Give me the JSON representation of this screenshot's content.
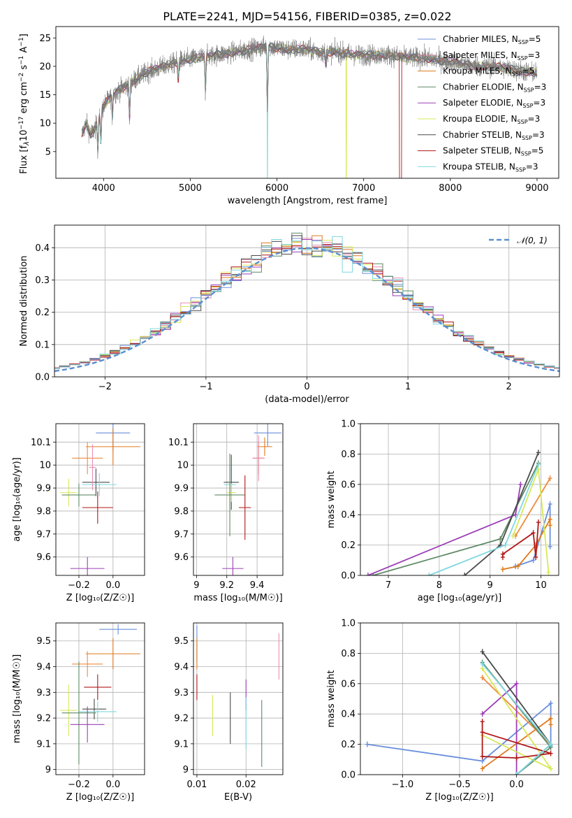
{
  "title": "PLATE=2241, MJD=54156, FIBERID=0385, z=0.022",
  "colors": {
    "Chabrier MILES": "#6a8fdc",
    "Salpeter MILES": "#f08a3c",
    "Kroupa MILES": "#e07a1c",
    "Chabrier ELODIE": "#5f8a66",
    "Salpeter ELODIE": "#9b3fb5",
    "Kroupa ELODIE": "#d7e85a",
    "Chabrier STELIB": "#4a4a4a",
    "Salpeter STELIB": "#b01717",
    "Kroupa STELIB": "#7fd8e0",
    "pink": "#e88fb4",
    "normal_curve": "#5b8fd0"
  },
  "chart_data": [
    {
      "id": "spectrum",
      "type": "line",
      "title": "PLATE=2241, MJD=54156, FIBERID=0385, z=0.022",
      "xlabel": "wavelength [Angstrom, rest frame]",
      "ylabel_parts": [
        "Flux [f",
        "λ",
        "10",
        "−17",
        " erg cm",
        "−2",
        " s",
        "−1",
        " A",
        "−1",
        "]"
      ],
      "xlim": [
        3450,
        9250
      ],
      "ylim": [
        0.3,
        27
      ],
      "xticks": [
        4000,
        5000,
        6000,
        7000,
        8000,
        9000
      ],
      "yticks": [
        5,
        10,
        15,
        20,
        25
      ],
      "legend_position": "top-right",
      "legend": [
        {
          "label": "Chabrier MILES, N",
          "sub": "SSP",
          "suffix": "=5"
        },
        {
          "label": "Salpeter MILES, N",
          "sub": "SSP",
          "suffix": "=3"
        },
        {
          "label": "Kroupa MILES, N",
          "sub": "SSP",
          "suffix": "=5"
        },
        {
          "label": "Chabrier ELODIE, N",
          "sub": "SSP",
          "suffix": "=3"
        },
        {
          "label": "Salpeter ELODIE, N",
          "sub": "SSP",
          "suffix": "=3"
        },
        {
          "label": "Kroupa ELODIE, N",
          "sub": "SSP",
          "suffix": "=3"
        },
        {
          "label": "Chabrier STELIB, N",
          "sub": "SSP",
          "suffix": "=3"
        },
        {
          "label": "Salpeter STELIB, N",
          "sub": "SSP",
          "suffix": "=5"
        },
        {
          "label": "Kroupa STELIB, N",
          "sub": "SSP",
          "suffix": "=3"
        }
      ],
      "continuum": [
        [
          3750,
          8
        ],
        [
          3800,
          10
        ],
        [
          3850,
          8
        ],
        [
          3900,
          9
        ],
        [
          3950,
          11
        ],
        [
          4000,
          13
        ],
        [
          4100,
          15
        ],
        [
          4200,
          16
        ],
        [
          4300,
          17
        ],
        [
          4400,
          18
        ],
        [
          4500,
          19
        ],
        [
          4700,
          20
        ],
        [
          4900,
          21
        ],
        [
          5100,
          21.5
        ],
        [
          5300,
          22
        ],
        [
          5500,
          22.5
        ],
        [
          5700,
          23
        ],
        [
          5900,
          23.5
        ],
        [
          6100,
          23
        ],
        [
          6300,
          23
        ],
        [
          6500,
          22.5
        ],
        [
          6700,
          22.5
        ],
        [
          6900,
          22
        ],
        [
          7100,
          22
        ],
        [
          7300,
          22
        ],
        [
          7500,
          21.5
        ],
        [
          7700,
          21.5
        ],
        [
          7900,
          21
        ],
        [
          8100,
          20.5
        ],
        [
          8300,
          20
        ],
        [
          8500,
          20
        ],
        [
          8700,
          19.5
        ],
        [
          8900,
          19
        ],
        [
          9000,
          18.8
        ]
      ],
      "absorption_lines": [
        [
          3934,
          5
        ],
        [
          3969,
          5
        ],
        [
          4102,
          4
        ],
        [
          4300,
          6
        ],
        [
          4861,
          3
        ],
        [
          5175,
          6
        ],
        [
          5890,
          11
        ],
        [
          6563,
          2
        ]
      ],
      "fit_glitches": [
        [
          5890,
          0
        ],
        [
          6800,
          0
        ],
        [
          7420,
          0
        ]
      ]
    },
    {
      "id": "residuals",
      "type": "bar",
      "xlabel": "(data-model)/error",
      "ylabel": "Normed distribution",
      "xlim": [
        -2.5,
        2.5
      ],
      "ylim": [
        0,
        0.47
      ],
      "xticks": [
        -2,
        -1,
        0,
        1,
        2
      ],
      "xtick_labels": [
        "−2",
        "−1",
        "0",
        "1",
        "2"
      ],
      "yticks": [
        0.0,
        0.1,
        0.2,
        0.3,
        0.4
      ],
      "ytick_labels": [
        "0.0",
        "0.1",
        "0.2",
        "0.3",
        "0.4"
      ],
      "legend_position": "top-right",
      "legend": "𝒩(0, 1)",
      "bin_width": 0.1,
      "normal_curve": {
        "mean": 0,
        "std": 1
      }
    },
    {
      "id": "age_vs_Z",
      "type": "scatter",
      "xlabel": "Z [log₁₀(Z/Z☉)]",
      "ylabel": "age  [log₁₀(age/yr)]",
      "xlim": [
        -0.335,
        0.185
      ],
      "ylim": [
        9.52,
        10.18
      ],
      "xticks": [
        -0.2,
        0.0
      ],
      "xtick_labels": [
        "−0.2",
        "0.0"
      ],
      "yticks": [
        9.6,
        9.7,
        9.8,
        9.9,
        10.0,
        10.1
      ],
      "points": [
        {
          "series": "Chabrier MILES",
          "x": 0.0,
          "xerr": 0.1,
          "y": 10.14,
          "yerr": 0.08
        },
        {
          "series": "Kroupa MILES",
          "x": 0.0,
          "xerr": 0.16,
          "y": 10.08,
          "yerr": 0.08
        },
        {
          "series": "Salpeter MILES",
          "x": -0.15,
          "xerr": 0.09,
          "y": 10.03,
          "yerr": 0.07
        },
        {
          "series": "Chabrier STELIB",
          "x": -0.1,
          "xerr": 0.08,
          "y": 9.925,
          "yerr": 0.06
        },
        {
          "series": "Kroupa STELIB",
          "x": -0.08,
          "xerr": 0.1,
          "y": 9.915,
          "yerr": 0.05
        },
        {
          "series": "Kroupa ELODIE",
          "x": -0.26,
          "xerr": 0.05,
          "y": 9.88,
          "yerr": 0.06
        },
        {
          "series": "Chabrier ELODIE",
          "x": -0.2,
          "xerr": 0.1,
          "y": 9.87,
          "yerr": 0.05
        },
        {
          "series": "Salpeter STELIB",
          "x": -0.09,
          "xerr": 0.09,
          "y": 9.815,
          "yerr": 0.07
        },
        {
          "series": "Salpeter ELODIE",
          "x": -0.15,
          "xerr": 0.1,
          "y": 9.55,
          "yerr": 0.05
        },
        {
          "series": "pink",
          "x": -0.12,
          "xerr": 0.02,
          "y": 9.99,
          "yerr": 0.1
        }
      ]
    },
    {
      "id": "age_vs_mass",
      "type": "scatter",
      "xlabel": "mass [log₁₀(M/M☉)]",
      "xlim": [
        8.98,
        9.57
      ],
      "ylim": [
        9.52,
        10.18
      ],
      "xticks": [
        9.0,
        9.2,
        9.4
      ],
      "yticks": [
        9.6,
        9.7,
        9.8,
        9.9,
        10.0,
        10.1
      ],
      "points": [
        {
          "series": "Chabrier MILES",
          "x": 9.47,
          "xerr": 0.09,
          "y": 10.14,
          "yerr": 0.06
        },
        {
          "series": "Kroupa MILES",
          "x": 9.45,
          "xerr": 0.05,
          "y": 10.08,
          "yerr": 0.04
        },
        {
          "series": "Salpeter MILES",
          "x": 9.41,
          "xerr": 0.04,
          "y": 10.03,
          "yerr": 0.07
        },
        {
          "series": "Chabrier STELIB",
          "x": 9.23,
          "xerr": 0.05,
          "y": 9.925,
          "yerr": 0.12
        },
        {
          "series": "Kroupa STELIB",
          "x": 9.22,
          "xerr": 0.04,
          "y": 9.915,
          "yerr": 0.1
        },
        {
          "series": "Kroupa ELODIE",
          "x": 9.23,
          "xerr": 0.03,
          "y": 9.88,
          "yerr": 0.04
        },
        {
          "series": "Chabrier ELODIE",
          "x": 9.22,
          "xerr": 0.1,
          "y": 9.87,
          "yerr": 0.18
        },
        {
          "series": "Salpeter STELIB",
          "x": 9.32,
          "xerr": 0.04,
          "y": 9.815,
          "yerr": 0.14
        },
        {
          "series": "Salpeter ELODIE",
          "x": 9.24,
          "xerr": 0.07,
          "y": 9.55,
          "yerr": 0.05
        },
        {
          "series": "pink",
          "x": 9.41,
          "xerr": 0.04,
          "y": 10.03,
          "yerr": 0.1
        }
      ]
    },
    {
      "id": "weight_vs_age",
      "type": "line",
      "xlabel": "age  [log₁₀(age/yr)]",
      "ylabel": "mass weight",
      "xlim": [
        6.45,
        10.35
      ],
      "ylim": [
        0,
        1.0
      ],
      "xticks": [
        7,
        8,
        9,
        10
      ],
      "yticks": [
        0.0,
        0.2,
        0.4,
        0.6,
        0.8,
        1.0
      ],
      "ytick_labels": [
        "0.0",
        "0.2",
        "0.4",
        "0.6",
        "0.8",
        "1.0"
      ],
      "series": [
        {
          "name": "Chabrier MILES",
          "points": [
            [
              9.5,
              0.06
            ],
            [
              9.85,
              0.1
            ],
            [
              10.18,
              0.47
            ],
            [
              10.18,
              0.19
            ]
          ]
        },
        {
          "name": "Kroupa MILES",
          "points": [
            [
              9.25,
              0.04
            ],
            [
              9.55,
              0.06
            ],
            [
              9.9,
              0.2
            ],
            [
              10.18,
              0.37
            ],
            [
              10.18,
              0.33
            ]
          ]
        },
        {
          "name": "Salpeter MILES",
          "points": [
            [
              9.5,
              0.26
            ],
            [
              10.18,
              0.64
            ]
          ]
        },
        {
          "name": "Chabrier ELODIE",
          "points": [
            [
              6.7,
              0.0
            ],
            [
              9.2,
              0.24
            ],
            [
              9.95,
              0.74
            ]
          ]
        },
        {
          "name": "Salpeter ELODIE",
          "points": [
            [
              6.6,
              0.0
            ],
            [
              9.5,
              0.4
            ],
            [
              9.6,
              0.6
            ]
          ]
        },
        {
          "name": "Kroupa ELODIE",
          "points": [
            [
              9.45,
              0.26
            ],
            [
              9.95,
              0.7
            ],
            [
              10.15,
              0.02
            ]
          ]
        },
        {
          "name": "Chabrier STELIB",
          "points": [
            [
              8.5,
              0.0
            ],
            [
              9.2,
              0.2
            ],
            [
              9.95,
              0.81
            ]
          ]
        },
        {
          "name": "Salpeter STELIB",
          "points": [
            [
              9.25,
              0.12
            ],
            [
              9.25,
              0.14
            ],
            [
              9.85,
              0.28
            ],
            [
              9.9,
              0.12
            ],
            [
              9.95,
              0.35
            ]
          ]
        },
        {
          "name": "Kroupa STELIB",
          "points": [
            [
              7.8,
              0.0
            ],
            [
              9.3,
              0.2
            ],
            [
              9.95,
              0.73
            ]
          ]
        }
      ]
    },
    {
      "id": "mass_vs_Z",
      "type": "scatter",
      "xlabel": "Z [log₁₀(Z/Z☉)]",
      "ylabel": "mass [log₁₀(M/M☉)]",
      "xlim": [
        -0.335,
        0.185
      ],
      "ylim": [
        8.98,
        9.57
      ],
      "xticks": [
        -0.2,
        0.0
      ],
      "xtick_labels": [
        "−0.2",
        "0.0"
      ],
      "yticks": [
        9.0,
        9.1,
        9.2,
        9.3,
        9.4,
        9.5
      ],
      "points": [
        {
          "series": "Chabrier MILES",
          "x": 0.03,
          "xerr": 0.11,
          "y": 9.545,
          "yerr": 0.02
        },
        {
          "series": "Kroupa MILES",
          "x": 0.0,
          "xerr": 0.16,
          "y": 9.45,
          "yerr": 0.06
        },
        {
          "series": "Salpeter MILES",
          "x": -0.15,
          "xerr": 0.09,
          "y": 9.41,
          "yerr": 0.05
        },
        {
          "series": "Salpeter STELIB",
          "x": -0.09,
          "xerr": 0.08,
          "y": 9.32,
          "yerr": 0.05
        },
        {
          "series": "Chabrier STELIB",
          "x": -0.11,
          "xerr": 0.07,
          "y": 9.235,
          "yerr": 0.04
        },
        {
          "series": "Kroupa STELIB",
          "x": -0.09,
          "xerr": 0.11,
          "y": 9.225,
          "yerr": 0.04
        },
        {
          "series": "Kroupa ELODIE",
          "x": -0.26,
          "xerr": 0.05,
          "y": 9.23,
          "yerr": 0.1
        },
        {
          "series": "Chabrier ELODIE",
          "x": -0.2,
          "xerr": 0.1,
          "y": 9.22,
          "yerr": 0.2
        },
        {
          "series": "Salpeter ELODIE",
          "x": -0.15,
          "xerr": 0.1,
          "y": 9.175,
          "yerr": 0.07
        }
      ]
    },
    {
      "id": "mass_vs_EBV",
      "type": "scatter",
      "xlabel": "E(B-V)",
      "xlim": [
        0.0093,
        0.0275
      ],
      "ylim": [
        8.98,
        9.57
      ],
      "xticks": [
        0.01,
        0.02
      ],
      "xtick_labels": [
        "0.01",
        "0.02"
      ],
      "yticks": [
        9.0,
        9.1,
        9.2,
        9.3,
        9.4,
        9.5
      ],
      "points": [
        {
          "series": "Chabrier MILES",
          "x": 0.01,
          "y": 9.49,
          "yerr": 0.07
        },
        {
          "series": "Kroupa MILES",
          "x": 0.01,
          "y": 9.45,
          "yerr": 0.06
        },
        {
          "series": "Salpeter STELIB",
          "x": 0.01,
          "y": 9.32,
          "yerr": 0.05
        },
        {
          "series": "Kroupa ELODIE",
          "x": 0.0132,
          "y": 9.21,
          "yerr": 0.08
        },
        {
          "series": "Chabrier STELIB",
          "x": 0.0168,
          "y": 9.2,
          "yerr": 0.1
        },
        {
          "series": "Salpeter ELODIE",
          "x": 0.02,
          "y": 9.29,
          "yerr": 0.06
        },
        {
          "series": "Kroupa STELIB",
          "x": 0.02,
          "y": 9.18,
          "yerr": 0.1
        },
        {
          "series": "Chabrier ELODIE",
          "x": 0.0232,
          "y": 9.14,
          "yerr": 0.13
        },
        {
          "series": "pink",
          "x": 0.0267,
          "y": 9.44,
          "yerr": 0.09
        }
      ]
    },
    {
      "id": "weight_vs_Z",
      "type": "line",
      "xlabel": "Z [log₁₀(Z/Z☉)]",
      "ylabel": "mass weight",
      "xlim": [
        -1.37,
        0.37
      ],
      "ylim": [
        0,
        1.0
      ],
      "xticks": [
        -1.0,
        -0.5,
        0.0
      ],
      "xtick_labels": [
        "−1.0",
        "−0.5",
        "0.0"
      ],
      "yticks": [
        0.0,
        0.2,
        0.4,
        0.6,
        0.8,
        1.0
      ],
      "ytick_labels": [
        "0.0",
        "0.2",
        "0.4",
        "0.6",
        "0.8",
        "1.0"
      ],
      "series": [
        {
          "name": "Chabrier MILES",
          "points": [
            [
              -1.31,
              0.2
            ],
            [
              -0.3,
              0.09
            ],
            [
              0.3,
              0.47
            ],
            [
              0.3,
              0.19
            ]
          ]
        },
        {
          "name": "Kroupa MILES",
          "points": [
            [
              -0.3,
              0.04
            ],
            [
              0.3,
              0.37
            ],
            [
              0.3,
              0.33
            ]
          ]
        },
        {
          "name": "Salpeter MILES",
          "points": [
            [
              -0.3,
              0.64
            ],
            [
              0.3,
              0.2
            ]
          ]
        },
        {
          "name": "Chabrier ELODIE",
          "points": [
            [
              -0.3,
              0.74
            ],
            [
              0.3,
              0.18
            ],
            [
              0.0,
              0.0
            ]
          ]
        },
        {
          "name": "Salpeter ELODIE",
          "points": [
            [
              -0.3,
              0.4
            ],
            [
              0.0,
              0.6
            ],
            [
              0.0,
              0.0
            ]
          ]
        },
        {
          "name": "Kroupa ELODIE",
          "points": [
            [
              -0.3,
              0.7
            ],
            [
              0.3,
              0.04
            ],
            [
              -0.3,
              0.26
            ]
          ]
        },
        {
          "name": "Chabrier STELIB",
          "points": [
            [
              -0.3,
              0.81
            ],
            [
              0.3,
              0.2
            ],
            [
              0.0,
              0.0
            ]
          ]
        },
        {
          "name": "Salpeter STELIB",
          "points": [
            [
              -0.3,
              0.35
            ],
            [
              -0.3,
              0.12
            ],
            [
              0.0,
              0.11
            ],
            [
              0.3,
              0.14
            ],
            [
              -0.3,
              0.28
            ]
          ]
        },
        {
          "name": "Kroupa STELIB",
          "points": [
            [
              -0.3,
              0.73
            ],
            [
              0.3,
              0.2
            ],
            [
              0.0,
              0.0
            ]
          ]
        }
      ]
    }
  ]
}
